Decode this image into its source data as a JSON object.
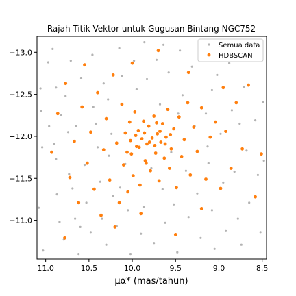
{
  "chart_data": {
    "type": "scatter",
    "title": "Rajah Titik Vektor untuk Gugusan Bintang NGC752",
    "xlabel": "μα* (mas/tahun)",
    "ylabel": "",
    "xlim": [
      11.1,
      8.45
    ],
    "ylim": [
      -10.54,
      -13.19
    ],
    "x_inverted": true,
    "y_inverted": true,
    "x_ticks": [
      11.0,
      10.5,
      10.0,
      9.5,
      9.0,
      8.5
    ],
    "x_tick_labels": [
      "11.0",
      "10.5",
      "10.0",
      "9.5",
      "9.0",
      "8.5"
    ],
    "y_ticks": [
      -13.0,
      -12.5,
      -12.0,
      -11.5,
      -11.0
    ],
    "y_tick_labels": [
      "−13.0",
      "−12.5",
      "−12.0",
      "−11.5",
      "−11.0"
    ],
    "grid": false,
    "legend_position": "top-right",
    "series": [
      {
        "name": "Semua data",
        "color": "#b3b3b3",
        "marker_size": 1.6,
        "points": [
          [
            11.03,
            -10.64
          ],
          [
            11.05,
            -12.3
          ],
          [
            11.06,
            -12.57
          ],
          [
            11.08,
            -11.15
          ],
          [
            11.04,
            -11.87
          ],
          [
            10.97,
            -12.88
          ],
          [
            10.92,
            -13.04
          ],
          [
            10.88,
            -12.58
          ],
          [
            10.9,
            -11.91
          ],
          [
            10.88,
            -11.73
          ],
          [
            10.87,
            -11.31
          ],
          [
            10.84,
            -10.98
          ],
          [
            10.79,
            -10.77
          ],
          [
            10.82,
            -12.25
          ],
          [
            10.77,
            -12.48
          ],
          [
            10.71,
            -12.9
          ],
          [
            10.73,
            -11.55
          ],
          [
            10.69,
            -11.38
          ],
          [
            10.66,
            -11.02
          ],
          [
            10.62,
            -10.6
          ],
          [
            10.65,
            -12.12
          ],
          [
            10.59,
            -12.69
          ],
          [
            10.55,
            -11.66
          ],
          [
            10.53,
            -11.21
          ],
          [
            10.48,
            -10.86
          ],
          [
            10.46,
            -12.97
          ],
          [
            10.42,
            -12.15
          ],
          [
            10.4,
            -11.87
          ],
          [
            10.37,
            -11.46
          ],
          [
            10.35,
            -11.02
          ],
          [
            10.3,
            -10.71
          ],
          [
            10.33,
            -12.63
          ],
          [
            10.28,
            -12.44
          ],
          [
            10.24,
            -12.03
          ],
          [
            10.22,
            -11.29
          ],
          [
            10.18,
            -10.93
          ],
          [
            10.15,
            -13.05
          ],
          [
            10.12,
            -12.72
          ],
          [
            10.08,
            -11.67
          ],
          [
            10.05,
            -11.12
          ],
          [
            10.02,
            -10.6
          ],
          [
            9.98,
            -12.9
          ],
          [
            9.95,
            -12.56
          ],
          [
            9.92,
            -11.42
          ],
          [
            9.9,
            -10.84
          ],
          [
            9.86,
            -13.12
          ],
          [
            9.83,
            -12.68
          ],
          [
            9.78,
            -11.62
          ],
          [
            9.75,
            -10.73
          ],
          [
            9.72,
            -12.91
          ],
          [
            9.68,
            -12.38
          ],
          [
            9.65,
            -11.37
          ],
          [
            9.62,
            -10.97
          ],
          [
            9.58,
            -12.76
          ],
          [
            9.55,
            -11.81
          ],
          [
            9.52,
            -11.19
          ],
          [
            9.48,
            -10.62
          ],
          [
            9.45,
            -13.02
          ],
          [
            9.42,
            -12.49
          ],
          [
            9.38,
            -11.59
          ],
          [
            9.35,
            -11.04
          ],
          [
            9.31,
            -12.83
          ],
          [
            9.28,
            -12.12
          ],
          [
            9.25,
            -11.32
          ],
          [
            9.21,
            -10.79
          ],
          [
            9.18,
            -12.95
          ],
          [
            9.15,
            -12.27
          ],
          [
            9.12,
            -11.68
          ],
          [
            9.08,
            -11.12
          ],
          [
            9.05,
            -10.66
          ],
          [
            9.02,
            -12.73
          ],
          [
            8.98,
            -12.03
          ],
          [
            8.95,
            -11.45
          ],
          [
            8.92,
            -10.88
          ],
          [
            8.88,
            -12.87
          ],
          [
            8.85,
            -12.31
          ],
          [
            8.82,
            -11.58
          ],
          [
            8.78,
            -11.02
          ],
          [
            8.74,
            -10.71
          ],
          [
            8.71,
            -12.59
          ],
          [
            8.68,
            -11.83
          ],
          [
            8.65,
            -11.21
          ],
          [
            8.61,
            -12.99
          ],
          [
            8.58,
            -12.19
          ],
          [
            8.55,
            -11.54
          ],
          [
            8.52,
            -10.86
          ],
          [
            8.49,
            -12.41
          ],
          [
            8.48,
            -11.71
          ],
          [
            10.96,
            -12.12
          ],
          [
            10.6,
            -10.92
          ],
          [
            10.27,
            -11.77
          ],
          [
            9.64,
            -13.09
          ],
          [
            9.08,
            -12.55
          ],
          [
            8.76,
            -12.15
          ],
          [
            10.14,
            -11.39
          ],
          [
            9.47,
            -12.27
          ],
          [
            9.87,
            -11.16
          ],
          [
            10.45,
            -12.35
          ],
          [
            9.13,
            -11.88
          ],
          [
            10.74,
            -12.05
          ]
        ]
      },
      {
        "name": "HDBSCAN",
        "color": "#ff7f0e",
        "marker_size": 2.4,
        "points": [
          [
            10.93,
            -11.81
          ],
          [
            10.86,
            -12.27
          ],
          [
            10.77,
            -12.63
          ],
          [
            10.72,
            -11.51
          ],
          [
            10.67,
            -11.94
          ],
          [
            10.62,
            -11.21
          ],
          [
            10.58,
            -12.35
          ],
          [
            10.52,
            -11.68
          ],
          [
            10.48,
            -12.05
          ],
          [
            10.44,
            -11.37
          ],
          [
            10.4,
            -12.52
          ],
          [
            10.36,
            -11.06
          ],
          [
            10.33,
            -11.84
          ],
          [
            10.3,
            -12.21
          ],
          [
            10.26,
            -11.48
          ],
          [
            10.22,
            -12.73
          ],
          [
            10.18,
            -11.92
          ],
          [
            10.15,
            -11.21
          ],
          [
            10.12,
            -12.38
          ],
          [
            10.1,
            -11.66
          ],
          [
            10.08,
            -12.04
          ],
          [
            10.05,
            -11.34
          ],
          [
            10.03,
            -12.17
          ],
          [
            10.01,
            -11.79
          ],
          [
            9.99,
            -11.53
          ],
          [
            9.97,
            -12.29
          ],
          [
            9.95,
            -11.88
          ],
          [
            9.93,
            -12.07
          ],
          [
            9.91,
            -11.42
          ],
          [
            9.89,
            -11.97
          ],
          [
            9.87,
            -12.18
          ],
          [
            9.85,
            -11.71
          ],
          [
            9.83,
            -11.91
          ],
          [
            9.81,
            -12.12
          ],
          [
            9.79,
            -11.59
          ],
          [
            9.77,
            -11.98
          ],
          [
            9.75,
            -12.24
          ],
          [
            9.73,
            -11.8
          ],
          [
            9.71,
            -12.03
          ],
          [
            9.69,
            -11.47
          ],
          [
            9.67,
            -11.93
          ],
          [
            9.65,
            -12.15
          ],
          [
            9.63,
            -11.74
          ],
          [
            9.61,
            -11.99
          ],
          [
            9.59,
            -12.32
          ],
          [
            9.57,
            -11.62
          ],
          [
            9.55,
            -11.85
          ],
          [
            9.52,
            -12.09
          ],
          [
            9.49,
            -11.39
          ],
          [
            9.46,
            -12.23
          ],
          [
            9.43,
            -11.76
          ],
          [
            9.4,
            -11.96
          ],
          [
            9.36,
            -12.4
          ],
          [
            9.33,
            -11.54
          ],
          [
            9.29,
            -12.11
          ],
          [
            9.25,
            -11.82
          ],
          [
            9.2,
            -12.34
          ],
          [
            9.15,
            -11.49
          ],
          [
            9.1,
            -11.99
          ],
          [
            9.04,
            -12.17
          ],
          [
            8.98,
            -11.38
          ],
          [
            8.92,
            -12.06
          ],
          [
            8.86,
            -11.62
          ],
          [
            8.8,
            -12.4
          ],
          [
            8.73,
            -11.85
          ],
          [
            8.66,
            -12.61
          ],
          [
            8.58,
            -11.28
          ],
          [
            8.51,
            -11.79
          ],
          [
            10.02,
            -11.95
          ],
          [
            9.96,
            -12.01
          ],
          [
            9.92,
            -11.87
          ],
          [
            9.86,
            -12.04
          ],
          [
            9.8,
            -11.93
          ],
          [
            9.74,
            -11.89
          ],
          [
            9.68,
            -12.06
          ],
          [
            9.62,
            -11.91
          ],
          [
            9.56,
            -12.02
          ],
          [
            10.06,
            -11.81
          ],
          [
            9.84,
            -11.68
          ],
          [
            9.72,
            -12.16
          ],
          [
            9.9,
            -11.08
          ],
          [
            10.2,
            -10.92
          ],
          [
            9.5,
            -10.83
          ],
          [
            9.2,
            -11.14
          ],
          [
            10.78,
            -10.79
          ],
          [
            9.7,
            -13.02
          ],
          [
            10.0,
            -12.87
          ],
          [
            9.35,
            -12.76
          ],
          [
            10.55,
            -12.85
          ],
          [
            8.95,
            -12.58
          ]
        ]
      }
    ]
  }
}
